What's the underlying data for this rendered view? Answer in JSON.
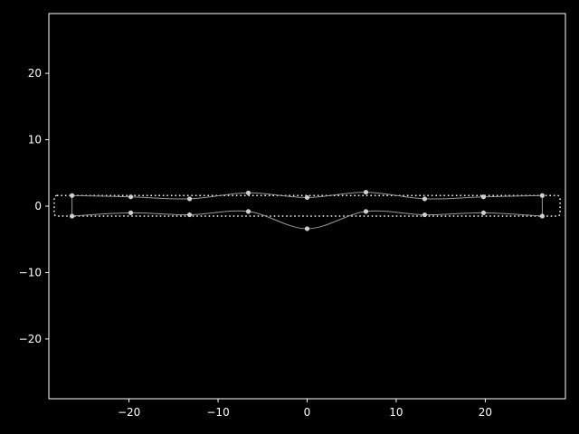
{
  "colors": {
    "background": "#000000",
    "axes": "#ffffff",
    "curve": "#9a9a9a",
    "points": "#cfcfcf",
    "box": "#ffffff"
  },
  "chart_data": {
    "type": "line",
    "title": "",
    "xlabel": "",
    "ylabel": "",
    "xlim": [
      -29,
      29
    ],
    "ylim": [
      -29,
      29
    ],
    "xticks": [
      -20,
      -10,
      0,
      10,
      20
    ],
    "yticks": [
      -20,
      -10,
      0,
      10,
      20
    ],
    "xtick_labels": [
      "−20",
      "−10",
      "0",
      "10",
      "20"
    ],
    "ytick_labels": [
      "−20",
      "−10",
      "0",
      "10",
      "20"
    ],
    "grid": false,
    "series": [
      {
        "values_x": [
          -26.4,
          -19.8,
          -13.2,
          -6.6,
          0,
          6.6,
          13.2,
          19.8,
          26.4
        ],
        "values_y": [
          1.6,
          1.4,
          1.1,
          2.0,
          1.3,
          2.1,
          1.1,
          1.4,
          1.6
        ]
      },
      {
        "values_x": [
          -26.4,
          -19.8,
          -13.2,
          -6.6,
          0,
          6.6,
          13.2,
          19.8,
          26.4
        ],
        "values_y": [
          -1.5,
          -1.0,
          -1.3,
          -0.8,
          -3.4,
          -0.8,
          -1.3,
          -1.0,
          -1.5
        ]
      }
    ],
    "bounding_box": {
      "x": [
        -28.4,
        28.4
      ],
      "y": [
        -1.5,
        1.6
      ],
      "style": "dotted"
    }
  }
}
